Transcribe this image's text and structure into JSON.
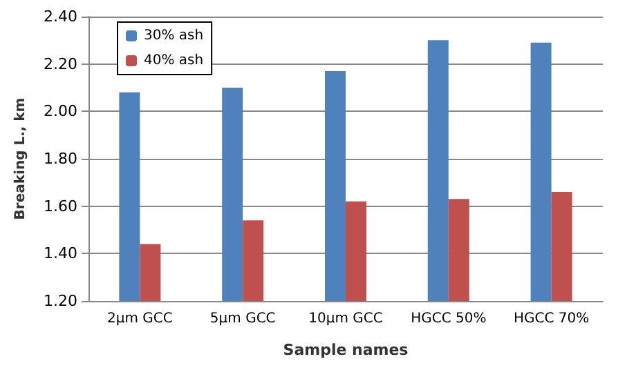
{
  "chart_data": {
    "type": "bar",
    "xlabel": "Sample names",
    "ylabel": "Breaking L., km",
    "categories": [
      "2µm GCC",
      "5µm GCC",
      "10µm GCC",
      "HGCC 50%",
      "HGCC 70%"
    ],
    "series": [
      {
        "name": "30% ash",
        "color": "#4f81bd",
        "values": [
          2.08,
          2.1,
          2.17,
          2.3,
          2.29
        ]
      },
      {
        "name": "40% ash",
        "color": "#c0504d",
        "values": [
          1.44,
          1.54,
          1.62,
          1.63,
          1.66
        ]
      }
    ],
    "ylim": [
      1.2,
      2.4
    ],
    "yticks": [
      {
        "value": 1.2,
        "label": "1.20"
      },
      {
        "value": 1.4,
        "label": "1.40"
      },
      {
        "value": 1.6,
        "label": "1.60"
      },
      {
        "value": 1.8,
        "label": "1.80"
      },
      {
        "value": 2.0,
        "label": "2.00"
      },
      {
        "value": 2.2,
        "label": "2.20"
      },
      {
        "value": 2.4,
        "label": "2.40"
      }
    ],
    "grid": "y",
    "legend": "top left"
  }
}
